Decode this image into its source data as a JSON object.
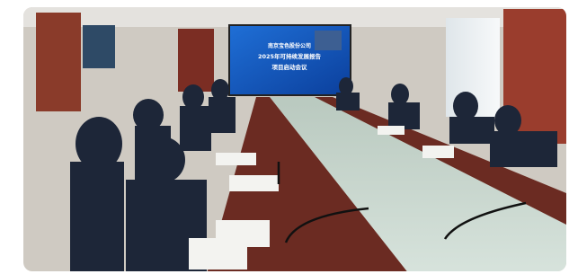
{
  "screen": {
    "lines": [
      "南京宝色股份公司",
      "2025年可持续发展报告",
      "项目启动会议"
    ]
  }
}
